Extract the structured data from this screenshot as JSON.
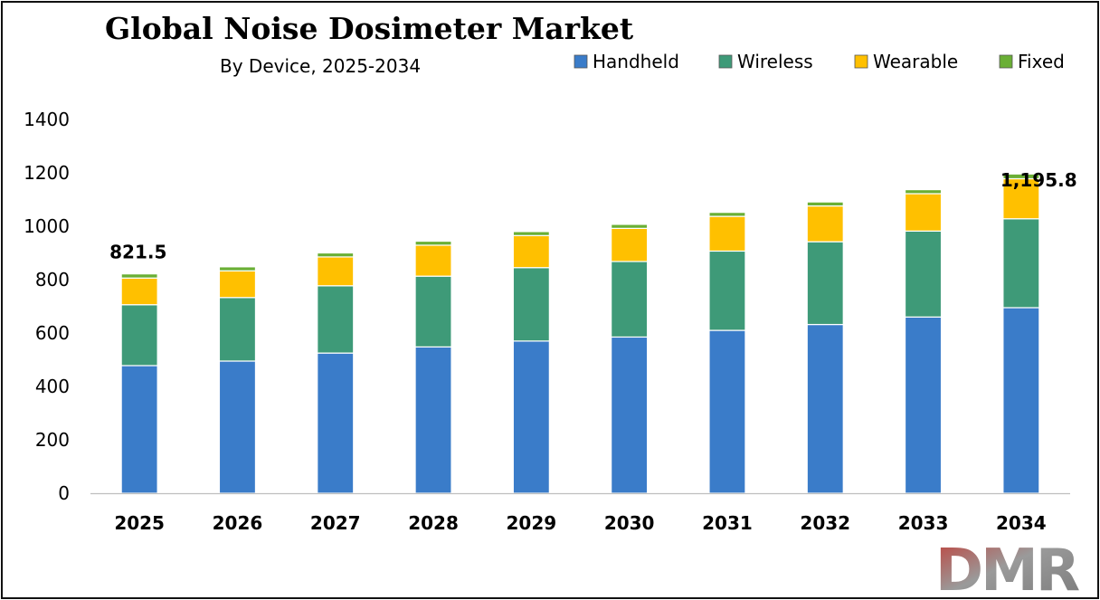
{
  "chart_data": {
    "type": "bar",
    "stacked": true,
    "title": "Global Noise Dosimeter Market",
    "subtitle": "By Device, 2025-2034",
    "categories": [
      "2025",
      "2026",
      "2027",
      "2028",
      "2029",
      "2030",
      "2031",
      "2032",
      "2033",
      "2034"
    ],
    "series": [
      {
        "name": "Handheld",
        "color": "#3A7CC9",
        "values": [
          478,
          495,
          525,
          548,
          570,
          585,
          610,
          632,
          660,
          695
        ]
      },
      {
        "name": "Wireless",
        "color": "#3E9A78",
        "values": [
          228,
          238,
          252,
          265,
          275,
          283,
          297,
          310,
          322,
          333
        ]
      },
      {
        "name": "Wearable",
        "color": "#FFC000",
        "values": [
          100,
          100,
          108,
          116,
          120,
          124,
          130,
          134,
          140,
          150
        ]
      },
      {
        "name": "Fixed",
        "color": "#6AAF35",
        "values": [
          15.5,
          15,
          15,
          15,
          15,
          15,
          15,
          15,
          15,
          17.8
        ]
      }
    ],
    "y_ticks": [
      "0",
      "200",
      "400",
      "600",
      "800",
      "1000",
      "1200",
      "1400"
    ],
    "ylim": [
      0,
      1400
    ],
    "xlabel": "",
    "ylabel": "",
    "legend_position": "top-right",
    "annotations": [
      {
        "category": "2025",
        "text": "821.5"
      },
      {
        "category": "2034",
        "text": "1,195.8"
      }
    ]
  },
  "logo": {
    "text": "DMR"
  }
}
